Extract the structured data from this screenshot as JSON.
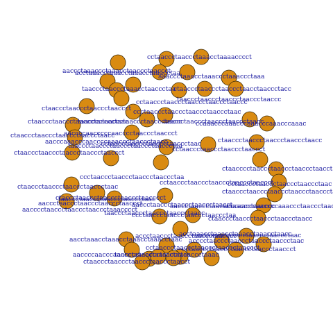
{
  "graph": {
    "node_color": "#d98b12",
    "node_border_color": "#3a2a0a",
    "label_color": "#1a1aa0",
    "labels": [
      "acctaaacctaaacctaaacctaaacctaa",
      "cctaaccctaaccctaaacctaaaacccct",
      "taaccctaaccctaaacctaaccctaa",
      "aaccctaaaccctaaacctaaccctaaccct",
      "aaaccctaaacctaaaccctaaaccctaaa",
      "ctaaccctaaccctaaccctaaccct",
      "taacccctaaccctaaccctaaccctaacc",
      "ctaaccctaaccctaaccctaacctaaccctacc",
      "ccctaaccctaaccctaaccctaaccctaac",
      "taaccctaaccctaaccctaaccctaaccc",
      "ctaaccctaaccctaaccctaaccctaac",
      "cctaaccctaaccctaaccctaaccctaaccc",
      "aaccccaacccccaacccctaaccctaaccct",
      "ctaaccctaaccctaaccctaaccctaacc",
      "taaccctaaccctaaccctaaccctaaccctaa",
      "taaccctaaccctaaccctaaccctaacc",
      "ctaaccctaaccctaaccctaaccctaacc",
      "ccaaacccaaacccaaacccaaacccaaac",
      "cctaaccctaaccctaaccctaaccct",
      "aacccaaacccaaccccaaaccctaaccctaacc",
      "cctaacctaaccctaaccctaaccctaac",
      "ctaaccctaaccctaaccctaaccctaaccct",
      "ctaacccctaaccctaaccctaaccctaacct",
      "cctaaccctaaccctaaccctaaccctaaccct",
      "ccctaaccctaaccctaaccctaaccctaa",
      "taaccctaaccctaaccctaaccctaac",
      "aaccctaaccctaaccctaaccctaaccct",
      "taaccctaaccctaaccctaaccctaacc",
      "cctaaccctaaccctaaccctaaccctaac",
      "aaccctaaccctaaccctaaccctaacccc",
      "acccaacccaaccccaaaccctaaccctaac",
      "ctaaccctaaccctaaccctaaccctaac",
      "ctaccctaaccctaaccctaaccctaacccct",
      "ctaaccctaaccctaaccctaaccctaacccta",
      "ctaaccctaaccctaaccctaaccctaacc",
      "aaccctaaccctaaccctaaccctaacct",
      "ccctaaccctaaccctaaccctaaccctaa",
      "aacccctaaccctaaccctaaccctaaacccct",
      "acccctaaccctaaccctaaccctaaccctaac",
      "cctaaccctaaccctaaccctaaccctaaccct",
      "aaccccaacccaaccctaaccctaaccctaacc",
      "accctaaccctaaccctaaccctaaccct",
      "cctaaccctaaccctaaccctaaccctaac",
      "acctaaacctaaacctaaacctaaacctaacc",
      "aacctaaacctaaacctaaacctaaacctaac",
      "taacccctaaccctaaccctaaccctaaac",
      "ctaaccctaaccctaaccctaaccctaacct",
      "cctaaccctaaccctaaccctaaccctaaccct"
    ]
  }
}
